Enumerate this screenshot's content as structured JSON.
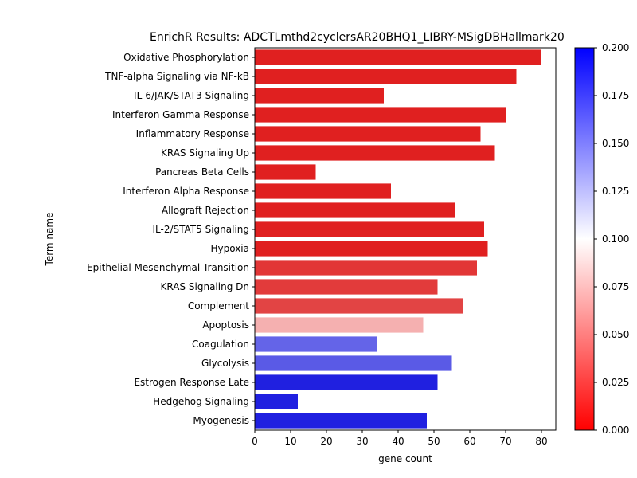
{
  "chart_data": {
    "type": "bar",
    "orientation": "horizontal",
    "title": "EnrichR Results: ADCTLmthd2cyclersAR20BHQ1_LIBRY-MSigDBHallmark20",
    "xlabel": "gene count",
    "ylabel": "Term name",
    "xlim": [
      0,
      84
    ],
    "x_ticks": [
      0,
      10,
      20,
      30,
      40,
      50,
      60,
      70,
      80
    ],
    "categories": [
      "Oxidative Phosphorylation",
      "TNF-alpha Signaling via NF-kB",
      "IL-6/JAK/STAT3 Signaling",
      "Interferon Gamma Response",
      "Inflammatory Response",
      "KRAS Signaling Up",
      "Pancreas Beta Cells",
      "Interferon Alpha Response",
      "Allograft Rejection",
      "IL-2/STAT5 Signaling",
      "Hypoxia",
      "Epithelial Mesenchymal Transition",
      "KRAS Signaling Dn",
      "Complement",
      "Apoptosis",
      "Coagulation",
      "Glycolysis",
      "Estrogen Response Late",
      "Hedgehog Signaling",
      "Myogenesis"
    ],
    "values": [
      80,
      73,
      36,
      70,
      63,
      67,
      17,
      38,
      56,
      64,
      65,
      62,
      51,
      58,
      47,
      34,
      55,
      51,
      12,
      48
    ],
    "colors": [
      "#e02020",
      "#e02020",
      "#e02020",
      "#e02020",
      "#e02020",
      "#e02020",
      "#e02020",
      "#e02020",
      "#e02020",
      "#e02020",
      "#e02020",
      "#e23636",
      "#e23b3b",
      "#e24444",
      "#f5b0b0",
      "#6464e8",
      "#5a5ae6",
      "#2020e0",
      "#2020e0",
      "#2020e0"
    ],
    "colorbar": {
      "min": 0.0,
      "max": 0.2,
      "ticks": [
        "0.000",
        "0.025",
        "0.050",
        "0.075",
        "0.100",
        "0.125",
        "0.150",
        "0.175",
        "0.200"
      ],
      "colormap": [
        "#ff0000",
        "#ffffff",
        "#0000ff"
      ]
    },
    "grid": false,
    "legend": "none"
  }
}
